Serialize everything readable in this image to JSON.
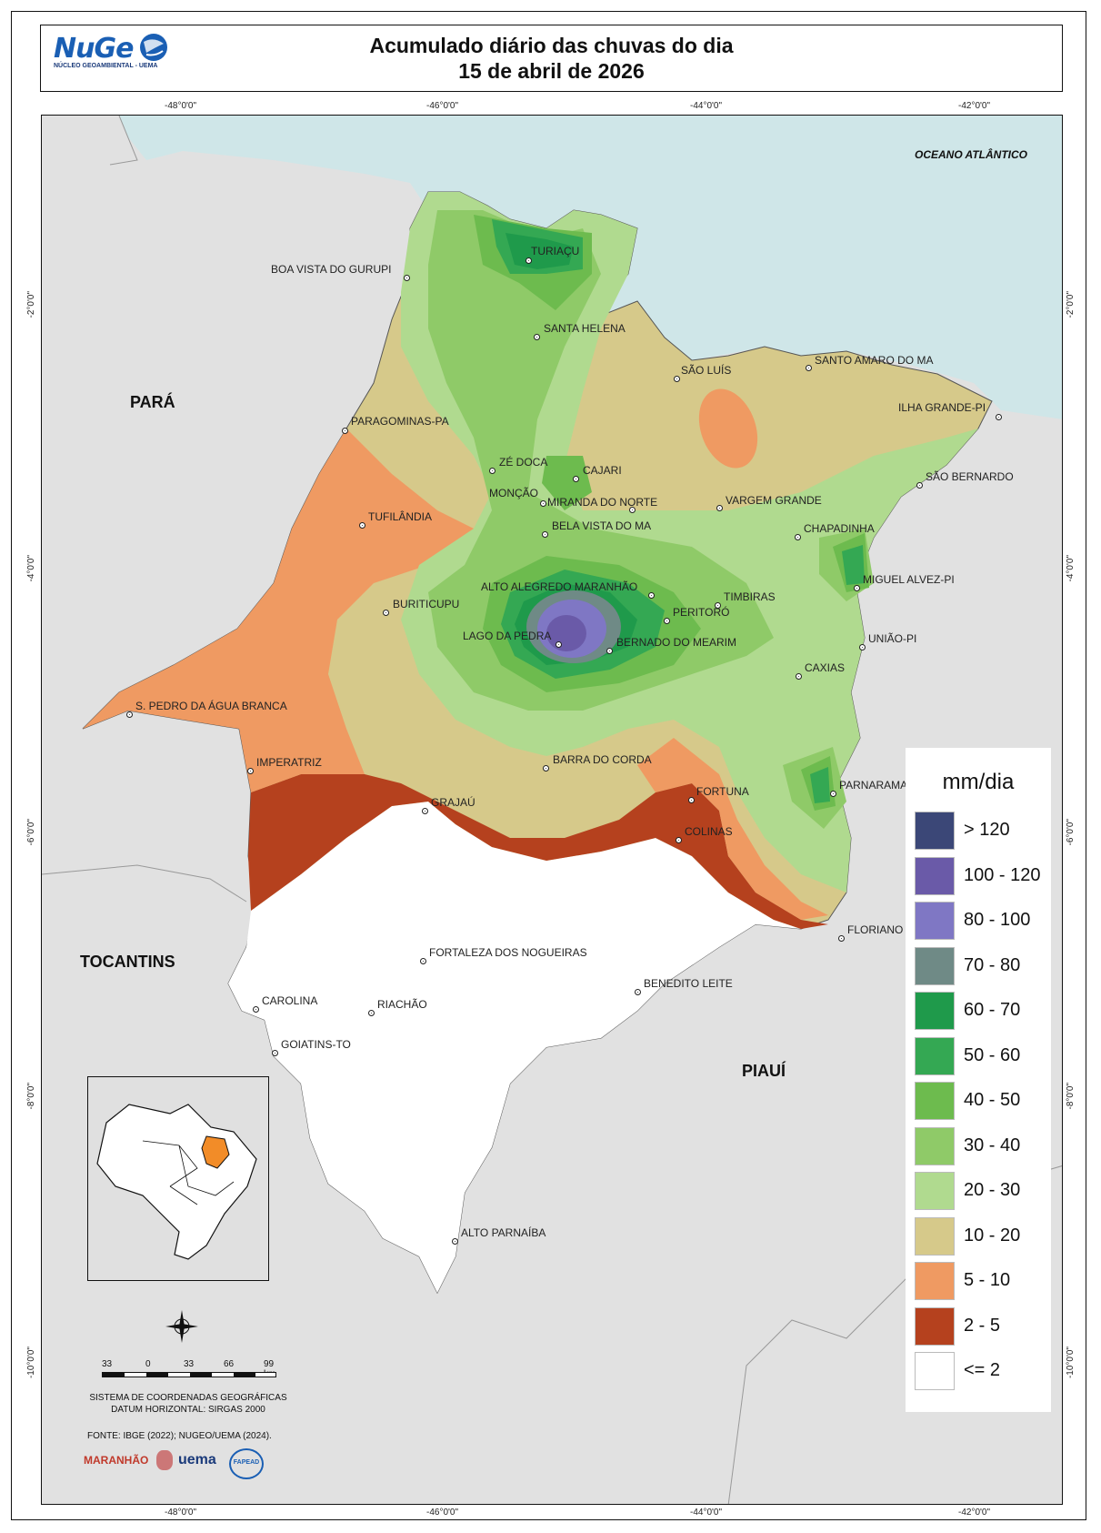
{
  "header": {
    "logo_text": "NuGe",
    "logo_subtitle": "NÚCLEO GEOAMBIENTAL - UEMA",
    "title_line1": "Acumulado diário das chuvas do dia",
    "title_line2": "15 de abril de 2026"
  },
  "coords": {
    "top": [
      "-48°0'0\"",
      "-46°0'0\"",
      "-44°0'0\"",
      "-42°0'0\""
    ],
    "bottom": [
      "-48°0'0\"",
      "-46°0'0\"",
      "-44°0'0\"",
      "-42°0'0\""
    ],
    "left": [
      "-2°0'0\"",
      "-4°0'0\"",
      "-6°0'0\"",
      "-8°0'0\"",
      "-10°0'0\""
    ],
    "right": [
      "-2°0'0\"",
      "-4°0'0\"",
      "-6°0'0\"",
      "-8°0'0\"",
      "-10°0'0\""
    ]
  },
  "regions": {
    "para": "PARÁ",
    "tocantins": "TOCANTINS",
    "piaui": "PIAUÍ",
    "ocean": "OCEANO ATLÂNTICO"
  },
  "places": [
    "BOA VISTA DO GURUPI",
    "TURIAÇU",
    "SANTA HELENA",
    "SÃO LUÍS",
    "SANTO AMARO DO MA",
    "ILHA GRANDE-PI",
    "PARAGOMINAS-PA",
    "ZÉ DOCA",
    "CAJARI",
    "MONÇÃO",
    "MIRANDA DO NORTE",
    "VARGEM GRANDE",
    "SÃO BERNARDO",
    "TUFILÂNDIA",
    "BELA VISTA DO MA",
    "CHAPADINHA",
    "ALTO ALEGREDO MARANHÃO",
    "BURITICUPU",
    "TIMBIRAS",
    "MIGUEL ALVEZ-PI",
    "PERITORÓ",
    "LAGO DA PEDRA",
    "BERNADO DO MEARIM",
    "UNIÃO-PI",
    "CAXIAS",
    "S. PEDRO DA ÁGUA BRANCA",
    "IMPERATRIZ",
    "BARRA DO CORDA",
    "PARNARAMA",
    "FORTUNA",
    "GRAJAÚ",
    "COLINAS",
    "FLORIANO",
    "FORTALEZA DOS NOGUEIRAS",
    "BENEDITO LEITE",
    "CAROLINA",
    "RIACHÃO",
    "GOIATINS-TO",
    "ALTO PARNAÍBA"
  ],
  "legend": {
    "title": "mm/dia",
    "items": [
      {
        "label": "> 120",
        "color": "#3b4777"
      },
      {
        "label": "100 - 120",
        "color": "#6a5aa8"
      },
      {
        "label": "80 - 100",
        "color": "#7f77c4"
      },
      {
        "label": "70 - 80",
        "color": "#6f8a86"
      },
      {
        "label": "60 - 70",
        "color": "#1f9a4b"
      },
      {
        "label": "50 - 60",
        "color": "#34a853"
      },
      {
        "label": "40 - 50",
        "color": "#6dbb4e"
      },
      {
        "label": "30 - 40",
        "color": "#8fca68"
      },
      {
        "label": "20 - 30",
        "color": "#b0da8f"
      },
      {
        "label": "10 - 20",
        "color": "#d6c98a"
      },
      {
        "label": "5 - 10",
        "color": "#ef9a62"
      },
      {
        "label": "2 - 5",
        "color": "#b5411e"
      },
      {
        "label": "<= 2",
        "color": "#ffffff"
      }
    ]
  },
  "scale": {
    "labels": [
      "33",
      "0",
      "33",
      "66",
      "99 km"
    ]
  },
  "notes": {
    "line1": "SISTEMA DE COORDENADAS GEOGRÁFICAS",
    "line2": "DATUM HORIZONTAL: SIRGAS 2000",
    "fonte": "FONTE: IBGE (2022); NUGEO/UEMA (2024)."
  },
  "partners": [
    "MARANHÃO",
    "uema",
    "FAPEAD"
  ],
  "colors": {
    "ocean": "#cfe6e8",
    "land_outside": "#e1e1e1",
    "highlight_state": "#f28c28"
  }
}
